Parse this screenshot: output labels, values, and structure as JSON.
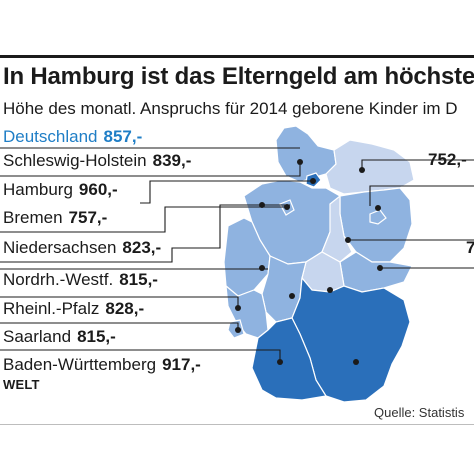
{
  "title": "In Hamburg ist das Elterngeld am höchsten",
  "subtitle": "Höhe des monatl. Anspruchs für 2014 geborene Kinder im D",
  "national": {
    "name": "Deutschland",
    "value": "857,-"
  },
  "states": [
    {
      "name": "Schleswig-Holstein",
      "value": "839,-"
    },
    {
      "name": "Hamburg",
      "value": "960,-"
    },
    {
      "name": "Bremen",
      "value": "757,-"
    },
    {
      "name": "Niedersachsen",
      "value": "823,-"
    },
    {
      "name": "Nordrh.-Westf.",
      "value": "815,-"
    },
    {
      "name": "Rheinl.-Pfalz",
      "value": "828,-"
    },
    {
      "name": "Saarland",
      "value": "815,-"
    },
    {
      "name": "Baden-Württemberg",
      "value": "917,-"
    }
  ],
  "right_values": [
    "752,-",
    "7"
  ],
  "logo": "WELT",
  "source": "Quelle: Statistis",
  "colors": {
    "accent": "#1f7ec6",
    "dark_blue": "#2a6fba",
    "mid_blue": "#8fb3e0",
    "light_blue": "#c7d6ee",
    "border": "#ffffff",
    "text": "#1b1b1b"
  }
}
